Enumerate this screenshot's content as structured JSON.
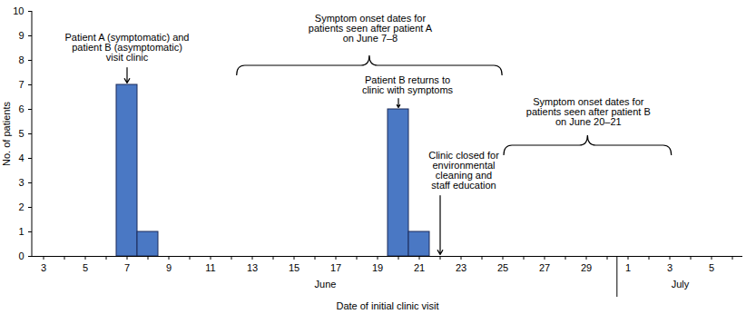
{
  "chart_data": {
    "type": "bar",
    "x_label": "Date of initial clinic visit",
    "y_label": "No. of patients",
    "categories": [
      "3",
      null,
      "5",
      null,
      "7",
      null,
      "9",
      null,
      "11",
      null,
      "13",
      null,
      "15",
      null,
      "17",
      null,
      "19",
      null,
      "21",
      null,
      "23",
      null,
      "25",
      null,
      "27",
      null,
      "29",
      null,
      "1",
      null,
      "3",
      null,
      "5",
      null
    ],
    "months": [
      "June",
      "June",
      "June",
      "June",
      "June",
      "June",
      "June",
      "June",
      "June",
      "June",
      "June",
      "June",
      "June",
      "June",
      "June",
      "June",
      "June",
      "June",
      "June",
      "June",
      "June",
      "June",
      "June",
      "June",
      "June",
      "June",
      "June",
      "June",
      "July",
      "July",
      "July",
      "July",
      "July",
      "July"
    ],
    "values": [
      0,
      0,
      0,
      0,
      7,
      1,
      0,
      0,
      0,
      0,
      0,
      0,
      0,
      0,
      0,
      0,
      0,
      6,
      1,
      0,
      0,
      0,
      0,
      0,
      0,
      0,
      0,
      0,
      0,
      0,
      0,
      0,
      0,
      0
    ],
    "color": "#4a78c4",
    "ylim": [
      0,
      10
    ],
    "yticks": [
      0,
      1,
      2,
      3,
      4,
      5,
      6,
      7,
      8,
      9,
      10
    ],
    "annotations": [
      "Patient A (symptomatic) and\npatient B (asymptomatic)\nvisit clinic",
      "Symptom onset dates for\npatients seen after patient A\non June 7–8",
      "Patient B returns to\nclinic with symptoms",
      "Clinic closed for\nenvironmental\ncleaning and\nstaff education",
      "Symptom onset dates for\npatients seen after patient B\non June 20–21"
    ]
  }
}
